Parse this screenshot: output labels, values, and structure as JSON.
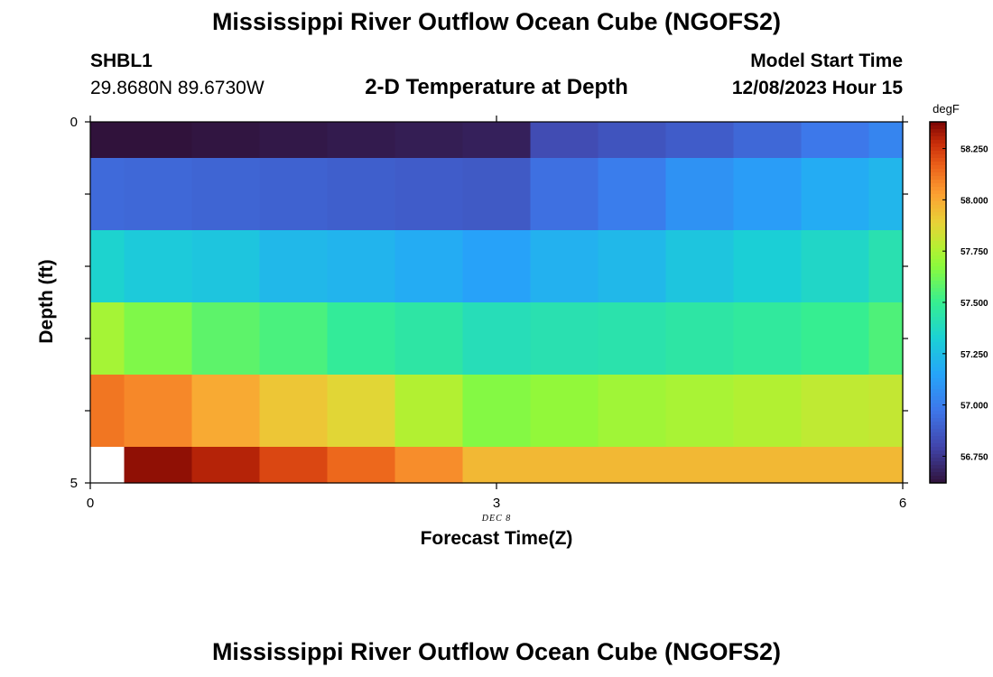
{
  "header": {
    "title": "Mississippi River Outflow Ocean Cube (NGOFS2)",
    "station_name": "SHBL1",
    "station_coords": "29.8680N  89.6730W",
    "subtitle": "2-D Temperature at Depth",
    "start_label": "Model Start Time",
    "start_time": "12/08/2023 Hour 15"
  },
  "footer": {
    "title": "Mississippi River Outflow Ocean Cube (NGOFS2)"
  },
  "chart_data": {
    "type": "heatmap",
    "title": "2-D Temperature at Depth",
    "xlabel": "Forecast Time(Z)",
    "ylabel": "Depth (ft)",
    "date_label": "DEC 8",
    "xlim": [
      0,
      6
    ],
    "ylim": [
      5,
      0
    ],
    "x_ticks": [
      "0",
      "3",
      "6"
    ],
    "y_ticks": [
      "0",
      "5"
    ],
    "x_edges": [
      0,
      0.25,
      0.75,
      1.25,
      1.75,
      2.25,
      2.75,
      3.25,
      3.75,
      4.25,
      4.75,
      5.25,
      5.75,
      6
    ],
    "depth_edges": [
      0,
      0.5,
      1.5,
      2.5,
      3.5,
      4.5,
      5
    ],
    "values": [
      [
        56.6,
        56.62,
        56.63,
        56.64,
        56.65,
        56.66,
        56.67,
        56.82,
        56.85,
        56.88,
        56.92,
        56.98,
        57.03
      ],
      [
        56.93,
        56.92,
        56.91,
        56.9,
        56.89,
        56.88,
        56.87,
        56.95,
        57.0,
        57.08,
        57.12,
        57.18,
        57.22
      ],
      [
        57.34,
        57.3,
        57.28,
        57.23,
        57.21,
        57.18,
        57.14,
        57.2,
        57.23,
        57.28,
        57.32,
        57.36,
        57.42
      ],
      [
        57.73,
        57.65,
        57.58,
        57.54,
        57.48,
        57.45,
        57.4,
        57.42,
        57.43,
        57.45,
        57.47,
        57.5,
        57.55
      ],
      [
        58.12,
        58.08,
        58.0,
        57.92,
        57.87,
        57.76,
        57.66,
        57.69,
        57.72,
        57.74,
        57.76,
        57.79,
        57.8
      ],
      [
        null,
        58.35,
        58.3,
        58.22,
        58.15,
        58.07,
        57.96,
        57.96,
        57.96,
        57.96,
        57.96,
        57.96,
        57.96
      ]
    ],
    "colorbar": {
      "unit": "degF",
      "min": 56.62,
      "max": 58.38,
      "ticks": [
        "56.750",
        "57.000",
        "57.250",
        "57.500",
        "57.750",
        "58.000",
        "58.250"
      ]
    }
  }
}
